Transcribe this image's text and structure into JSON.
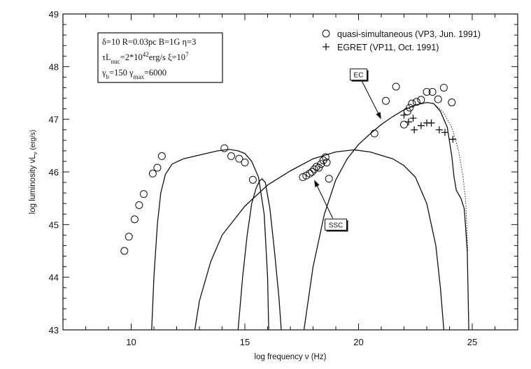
{
  "chart_data": {
    "type": "scatter",
    "xlabel": "log frequency ν (Hz)",
    "ylabel_main": "log luminosity νL",
    "ylabel_sub": "ν",
    "ylabel_unit": " (erg/s)",
    "xlim": [
      7,
      27
    ],
    "ylim": [
      43,
      49
    ],
    "xticks": [
      10,
      15,
      20,
      25
    ],
    "yticks": [
      43,
      44,
      45,
      46,
      47,
      48,
      49
    ],
    "params": [
      [
        {
          "t": "δ=10  R=0.03pc  B=1G  η=3"
        }
      ],
      [
        {
          "t": "τL"
        },
        {
          "t": "nuc",
          "sub": true
        },
        {
          "t": "=2*10"
        },
        {
          "t": "42",
          "sup": true
        },
        {
          "t": "erg/s  ξ=10"
        },
        {
          "t": "7",
          "sup": true
        }
      ],
      [
        {
          "t": "γ"
        },
        {
          "t": "b",
          "sub": true
        },
        {
          "t": "=150  γ"
        },
        {
          "t": "max",
          "sub": true
        },
        {
          "t": "=6000"
        }
      ]
    ],
    "legend": [
      {
        "marker": "circle",
        "label": "quasi-simultaneous (VP3, Jun. 1991)"
      },
      {
        "marker": "plus",
        "label": "EGRET (VP11, Oct. 1991)"
      }
    ],
    "annotations": [
      {
        "label": "EC",
        "box_at": [
          20.0,
          47.85
        ],
        "arrow_to": [
          21.0,
          47.0
        ]
      },
      {
        "label": "SSC",
        "box_at": [
          19.0,
          45.0
        ],
        "arrow_to": [
          18.05,
          45.85
        ]
      }
    ],
    "series": [
      {
        "name": "quasi-simultaneous (VP3, Jun. 1991)",
        "marker": "circle",
        "points": [
          [
            9.7,
            44.5
          ],
          [
            9.9,
            44.77
          ],
          [
            10.15,
            45.1
          ],
          [
            10.35,
            45.37
          ],
          [
            10.55,
            45.58
          ],
          [
            10.95,
            45.97
          ],
          [
            11.15,
            46.08
          ],
          [
            11.35,
            46.3
          ],
          [
            14.1,
            46.45
          ],
          [
            14.4,
            46.3
          ],
          [
            14.75,
            46.25
          ],
          [
            15.0,
            46.18
          ],
          [
            15.35,
            45.85
          ],
          [
            17.55,
            45.9
          ],
          [
            17.7,
            45.93
          ],
          [
            17.85,
            45.97
          ],
          [
            17.95,
            46.0
          ],
          [
            18.05,
            46.05
          ],
          [
            18.15,
            46.1
          ],
          [
            18.25,
            46.08
          ],
          [
            18.35,
            46.15
          ],
          [
            18.45,
            46.22
          ],
          [
            18.55,
            46.28
          ],
          [
            18.6,
            46.18
          ],
          [
            18.7,
            45.87
          ],
          [
            20.7,
            46.73
          ],
          [
            21.2,
            47.35
          ],
          [
            21.65,
            47.62
          ],
          [
            22.0,
            46.9
          ],
          [
            22.15,
            47.15
          ],
          [
            22.25,
            47.22
          ],
          [
            22.35,
            47.3
          ],
          [
            22.55,
            47.33
          ],
          [
            22.75,
            47.37
          ],
          [
            23.0,
            47.52
          ],
          [
            23.25,
            47.52
          ],
          [
            23.5,
            47.38
          ],
          [
            23.75,
            47.6
          ],
          [
            24.1,
            47.32
          ]
        ]
      },
      {
        "name": "EGRET (VP11, Oct. 1991)",
        "marker": "plus",
        "points": [
          [
            22.0,
            47.08
          ],
          [
            22.2,
            46.95
          ],
          [
            22.4,
            47.02
          ],
          [
            22.45,
            46.8
          ],
          [
            22.75,
            46.88
          ],
          [
            23.0,
            46.93
          ],
          [
            23.2,
            46.93
          ],
          [
            23.55,
            46.8
          ],
          [
            23.8,
            46.75
          ],
          [
            24.15,
            46.62
          ]
        ]
      }
    ],
    "curves": [
      {
        "name": "synchrotron",
        "points": [
          [
            10.9,
            43.0
          ],
          [
            11.0,
            44.0
          ],
          [
            11.15,
            45.0
          ],
          [
            11.3,
            45.6
          ],
          [
            11.5,
            45.95
          ],
          [
            11.8,
            46.15
          ],
          [
            12.3,
            46.25
          ],
          [
            13.0,
            46.32
          ],
          [
            13.8,
            46.4
          ],
          [
            14.3,
            46.43
          ],
          [
            14.7,
            46.4
          ],
          [
            15.0,
            46.35
          ],
          [
            15.3,
            46.2
          ],
          [
            15.6,
            45.9
          ],
          [
            15.85,
            45.2
          ],
          [
            16.0,
            44.0
          ],
          [
            16.05,
            43.0
          ]
        ]
      },
      {
        "name": "disk",
        "points": [
          [
            14.7,
            43.0
          ],
          [
            14.9,
            44.0
          ],
          [
            15.1,
            44.8
          ],
          [
            15.3,
            45.4
          ],
          [
            15.5,
            45.7
          ],
          [
            15.65,
            45.83
          ],
          [
            15.75,
            45.87
          ],
          [
            15.9,
            45.8
          ],
          [
            16.1,
            45.3
          ],
          [
            16.3,
            44.5
          ],
          [
            16.5,
            43.6
          ],
          [
            16.6,
            43.0
          ]
        ]
      },
      {
        "name": "SSC",
        "points": [
          [
            12.8,
            43.0
          ],
          [
            13.0,
            43.55
          ],
          [
            13.5,
            44.3
          ],
          [
            14.0,
            44.8
          ],
          [
            15.0,
            45.35
          ],
          [
            16.0,
            45.75
          ],
          [
            17.0,
            46.02
          ],
          [
            18.0,
            46.25
          ],
          [
            19.0,
            46.38
          ],
          [
            19.8,
            46.42
          ],
          [
            20.5,
            46.38
          ],
          [
            21.5,
            46.25
          ],
          [
            22.0,
            46.12
          ],
          [
            22.5,
            45.9
          ],
          [
            23.0,
            45.4
          ],
          [
            23.4,
            44.6
          ],
          [
            23.6,
            43.8
          ],
          [
            23.75,
            43.0
          ]
        ]
      },
      {
        "name": "EC",
        "points": [
          [
            17.6,
            43.0
          ],
          [
            18.0,
            44.2
          ],
          [
            18.5,
            45.2
          ],
          [
            19.0,
            45.85
          ],
          [
            19.5,
            46.25
          ],
          [
            20.0,
            46.52
          ],
          [
            20.5,
            46.72
          ],
          [
            21.0,
            46.9
          ],
          [
            21.5,
            47.05
          ],
          [
            22.0,
            47.18
          ],
          [
            22.5,
            47.27
          ],
          [
            23.0,
            47.32
          ],
          [
            23.3,
            47.3
          ],
          [
            23.6,
            47.15
          ],
          [
            23.9,
            46.85
          ],
          [
            24.1,
            46.3
          ],
          [
            24.2,
            45.9
          ],
          [
            24.3,
            45.65
          ],
          [
            24.5,
            45.5
          ],
          [
            24.65,
            45.3
          ],
          [
            24.78,
            44.5
          ],
          [
            24.85,
            43.0
          ]
        ]
      },
      {
        "name": "EC-dotted",
        "dotted": true,
        "points": [
          [
            23.3,
            47.3
          ],
          [
            23.7,
            47.15
          ],
          [
            24.1,
            46.85
          ],
          [
            24.4,
            46.4
          ],
          [
            24.6,
            45.9
          ],
          [
            24.72,
            45.4
          ],
          [
            24.8,
            44.5
          ]
        ]
      }
    ]
  }
}
